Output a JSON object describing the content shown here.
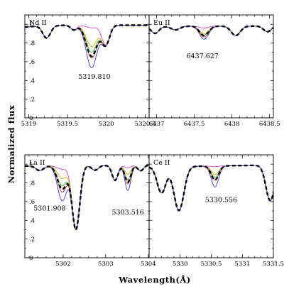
{
  "figure": {
    "ylabel": "Normalized flux",
    "xlabel": "Wavelength(Å)"
  },
  "colors": {
    "observed": "#000000",
    "model_strongest": "#3a3adf",
    "model_red": "#e03030",
    "model_green": "#33cc33",
    "model_yellow": "#d8b000",
    "model_weakest": "#e040e0"
  },
  "chart_data": [
    {
      "type": "line",
      "ion": "Nd II",
      "line_label": "5319.810",
      "xlim": [
        5318.95,
        5320.55
      ],
      "ylim": [
        0,
        1.1
      ],
      "xticks": [
        5319,
        5319.5,
        5320,
        5320.5
      ],
      "xtick_labels": [
        "5319",
        "5319.5",
        "5320",
        "5320.5"
      ],
      "yticks": [
        0,
        0.2,
        0.4,
        0.6,
        0.8,
        1
      ],
      "ytick_labels": [
        "0",
        ".2",
        ".4",
        ".6",
        ".8",
        "1"
      ],
      "continuum": [
        [
          5318.95,
          0.97
        ],
        [
          5319.1,
          0.98
        ],
        [
          5319.5,
          0.99
        ],
        [
          5320.2,
          0.99
        ],
        [
          5320.55,
          0.99
        ]
      ],
      "features": [
        {
          "center": 5319.23,
          "width": 0.05,
          "depth": 0.13,
          "varies": false
        },
        {
          "center": 5319.58,
          "width": 0.04,
          "depth": 0.05,
          "varies": false
        },
        {
          "center": 5319.81,
          "width": 0.07,
          "depth": 0.35,
          "varies": true
        },
        {
          "center": 5319.99,
          "width": 0.05,
          "depth": 0.21,
          "varies": false
        }
      ],
      "model_scale": [
        1.3,
        1.0,
        0.82,
        0.65,
        0.08
      ],
      "observed_scale": 0.95
    },
    {
      "type": "line",
      "ion": "Eu II",
      "line_label": "6437.627",
      "xlim": [
        6436.9,
        6438.55
      ],
      "ylim": [
        0,
        1.1
      ],
      "xticks": [
        6437,
        6437.5,
        6438,
        6438.5
      ],
      "xtick_labels": [
        "6437",
        "6437.5",
        "6438",
        "6438.5"
      ],
      "yticks": [
        0,
        0.2,
        0.4,
        0.6,
        0.8,
        1
      ],
      "ytick_labels": [
        "",
        "",
        "",
        "",
        "",
        ""
      ],
      "continuum": [
        [
          6436.9,
          0.97
        ],
        [
          6437.2,
          0.98
        ],
        [
          6438.55,
          0.98
        ]
      ],
      "features": [
        {
          "center": 6436.98,
          "width": 0.05,
          "depth": 0.07,
          "varies": false
        },
        {
          "center": 6437.25,
          "width": 0.06,
          "depth": 0.04,
          "varies": false
        },
        {
          "center": 6437.63,
          "width": 0.06,
          "depth": 0.1,
          "varies": true
        },
        {
          "center": 6438.05,
          "width": 0.06,
          "depth": 0.1,
          "varies": false
        },
        {
          "center": 6438.47,
          "width": 0.05,
          "depth": 0.06,
          "varies": false
        }
      ],
      "model_scale": [
        1.4,
        1.15,
        0.95,
        0.8,
        0.2
      ],
      "observed_scale": 1.0
    },
    {
      "type": "line",
      "ion": "La II",
      "line_label_left": "5301.908",
      "line_label_right": "5303.516",
      "xlim": [
        5301.1,
        5304.02
      ],
      "ylim": [
        0,
        1.1
      ],
      "xticks": [
        5302,
        5303,
        5304
      ],
      "xtick_labels": [
        "5302",
        "5303",
        "5304"
      ],
      "yticks": [
        0,
        0.2,
        0.4,
        0.6,
        0.8,
        1
      ],
      "ytick_labels": [
        "0",
        ".2",
        ".4",
        ".6",
        ".8",
        "1"
      ],
      "continuum": [
        [
          5301.1,
          0.98
        ],
        [
          5304.02,
          0.99
        ]
      ],
      "features": [
        {
          "center": 5301.45,
          "width": 0.09,
          "depth": 0.05,
          "varies": false
        },
        {
          "center": 5301.98,
          "width": 0.11,
          "depth": 0.25,
          "varies": true
        },
        {
          "center": 5302.3,
          "width": 0.09,
          "depth": 0.68,
          "varies": false
        },
        {
          "center": 5302.75,
          "width": 0.08,
          "depth": 0.05,
          "varies": false
        },
        {
          "center": 5303.22,
          "width": 0.07,
          "depth": 0.16,
          "varies": false
        },
        {
          "center": 5303.52,
          "width": 0.07,
          "depth": 0.18,
          "varies": true
        },
        {
          "center": 5303.82,
          "width": 0.07,
          "depth": 0.06,
          "varies": false
        }
      ],
      "model_scale": [
        1.5,
        1.12,
        0.85,
        0.55,
        0.15
      ],
      "observed_scale": 1.0
    },
    {
      "type": "line",
      "ion": "Ce II",
      "line_label": "5330.556",
      "xlim": [
        5329.5,
        5331.5
      ],
      "ylim": [
        0,
        1.1
      ],
      "xticks": [
        5330,
        5330.5,
        5331,
        5331.5
      ],
      "xtick_labels": [
        "5330",
        "5330.5",
        "5331",
        "5331.5"
      ],
      "yticks": [
        0,
        0.2,
        0.4,
        0.6,
        0.8,
        1
      ],
      "ytick_labels": [
        "",
        "",
        "",
        "",
        "",
        ""
      ],
      "continuum": [
        [
          5329.5,
          0.97
        ],
        [
          5331.5,
          0.99
        ]
      ],
      "features": [
        {
          "center": 5329.7,
          "width": 0.07,
          "depth": 0.28,
          "varies": false
        },
        {
          "center": 5329.98,
          "width": 0.08,
          "depth": 0.47,
          "varies": false
        },
        {
          "center": 5330.56,
          "width": 0.06,
          "depth": 0.15,
          "varies": true
        },
        {
          "center": 5331.45,
          "width": 0.07,
          "depth": 0.38,
          "varies": false
        }
      ],
      "model_scale": [
        1.5,
        1.0,
        0.8,
        0.6,
        0.05
      ],
      "observed_scale": 1.0
    }
  ]
}
